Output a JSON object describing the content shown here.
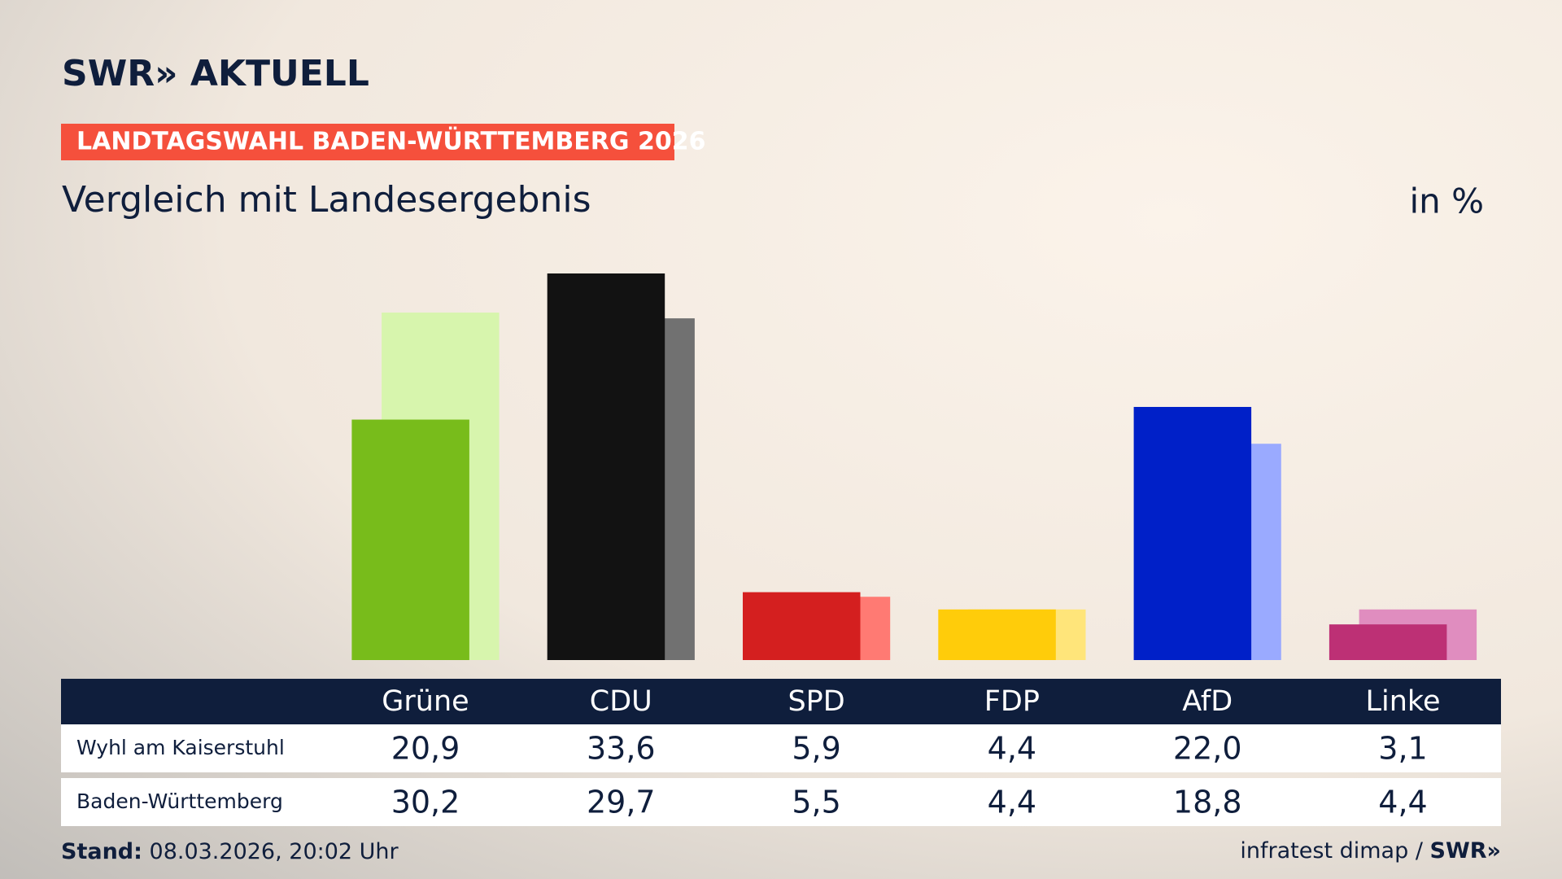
{
  "chart_data": {
    "type": "bar",
    "brand": "SWR» AKTUELL",
    "kicker": "LANDTAGSWAHL BADEN-WÜRTTEMBERG 2026",
    "title": "Vergleich mit Landesergebnis",
    "unit": "in %",
    "categories": [
      "Grüne",
      "CDU",
      "SPD",
      "FDP",
      "AfD",
      "Linke"
    ],
    "series": [
      {
        "name": "Wyhl am Kaiserstuhl",
        "colors": [
          "#78bc1b",
          "#121212",
          "#d41f1f",
          "#ffcc0a",
          "#0020c8",
          "#bd3075"
        ],
        "values": [
          20.9,
          33.6,
          5.9,
          4.4,
          22.0,
          3.1
        ],
        "value_labels": [
          "20,9",
          "33,6",
          "5,9",
          "4,4",
          "22,0",
          "3,1"
        ]
      },
      {
        "name": "Baden-Württemberg",
        "colors": [
          "#d7f5ad",
          "#717171",
          "#ff7a73",
          "#ffe57a",
          "#9aaaff",
          "#e08dbf"
        ],
        "values": [
          30.2,
          29.7,
          5.5,
          4.4,
          18.8,
          4.4
        ],
        "value_labels": [
          "30,2",
          "29,7",
          "5,5",
          "4,4",
          "18,8",
          "4,4"
        ]
      }
    ],
    "stand_label": "Stand:",
    "stand": "08.03.2026, 20:02 Uhr",
    "source": "infratest dimap /",
    "source_logo": "SWR»"
  }
}
